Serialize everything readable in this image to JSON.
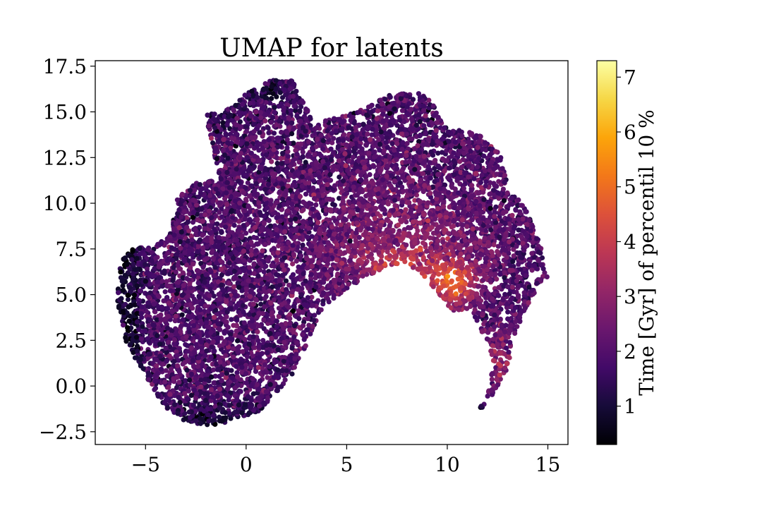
{
  "chart_data": {
    "type": "scatter",
    "title": "UMAP for latents",
    "xlabel": "",
    "ylabel": "",
    "xlim": [
      -7.5,
      16
    ],
    "ylim": [
      -3.2,
      17.8
    ],
    "xticks": [
      -5,
      0,
      5,
      10,
      15
    ],
    "xtick_labels": [
      "−5",
      "0",
      "5",
      "10",
      "15"
    ],
    "yticks": [
      -2.5,
      0.0,
      2.5,
      5.0,
      7.5,
      10.0,
      12.5,
      15.0,
      17.5
    ],
    "ytick_labels": [
      "−2.5",
      "0.0",
      "2.5",
      "5.0",
      "7.5",
      "10.0",
      "12.5",
      "15.0",
      "17.5"
    ],
    "grid": false,
    "colormap": "inferno",
    "colorbar": {
      "label": "Time [Gyr] of percentil 10 %",
      "range": [
        0.3,
        7.3
      ],
      "ticks": [
        1,
        2,
        3,
        4,
        5,
        6,
        7
      ],
      "tick_labels": [
        "1",
        "2",
        "3",
        "4",
        "5",
        "6",
        "7"
      ]
    },
    "point_cloud": {
      "description_count": 9000,
      "region_outline_xy": [
        [
          -6.3,
          6.8
        ],
        [
          -5.5,
          7.6
        ],
        [
          -4.5,
          7.7
        ],
        [
          -3.8,
          8.2
        ],
        [
          -3.4,
          10.3
        ],
        [
          -2.5,
          11.2
        ],
        [
          -1.3,
          11.3
        ],
        [
          -2.0,
          14.8
        ],
        [
          -0.6,
          15.3
        ],
        [
          0.0,
          16.0
        ],
        [
          1.2,
          16.8
        ],
        [
          2.3,
          16.7
        ],
        [
          2.8,
          15.8
        ],
        [
          3.3,
          14.4
        ],
        [
          4.5,
          14.7
        ],
        [
          6.0,
          15.2
        ],
        [
          7.0,
          16.0
        ],
        [
          8.5,
          16.1
        ],
        [
          9.3,
          15.5
        ],
        [
          9.8,
          14.2
        ],
        [
          11.5,
          13.8
        ],
        [
          12.6,
          12.8
        ],
        [
          13.0,
          11.0
        ],
        [
          13.9,
          9.7
        ],
        [
          14.6,
          7.8
        ],
        [
          15.0,
          5.9
        ],
        [
          14.0,
          4.5
        ],
        [
          13.4,
          3.0
        ],
        [
          13.0,
          1.0
        ],
        [
          12.2,
          -0.6
        ],
        [
          11.4,
          -1.6
        ],
        [
          12.0,
          -0.5
        ],
        [
          12.3,
          1.5
        ],
        [
          11.8,
          2.8
        ],
        [
          11.2,
          4.2
        ],
        [
          10.2,
          4.1
        ],
        [
          9.3,
          5.4
        ],
        [
          8.0,
          6.8
        ],
        [
          7.0,
          6.5
        ],
        [
          6.0,
          6.0
        ],
        [
          5.0,
          5.3
        ],
        [
          4.0,
          4.5
        ],
        [
          3.3,
          3.0
        ],
        [
          2.4,
          0.8
        ],
        [
          0.8,
          -1.3
        ],
        [
          -0.5,
          -1.8
        ],
        [
          -1.5,
          -2.2
        ],
        [
          -3.0,
          -2.0
        ],
        [
          -4.0,
          -1.2
        ],
        [
          -5.0,
          0.5
        ],
        [
          -6.0,
          2.5
        ],
        [
          -6.4,
          4.5
        ]
      ],
      "color_value_by_region": [
        {
          "region": "left edge and bottom-left",
          "value": 1.0
        },
        {
          "region": "top-left lobe",
          "value": 1.2
        },
        {
          "region": "main body",
          "value": 2.0
        },
        {
          "region": "center-right band y 5-9",
          "value": 3.5
        },
        {
          "region": "lower-right pocket around x 10, y 5",
          "value": 5.2
        },
        {
          "region": "right tail arc",
          "value": 3.8
        }
      ]
    }
  }
}
